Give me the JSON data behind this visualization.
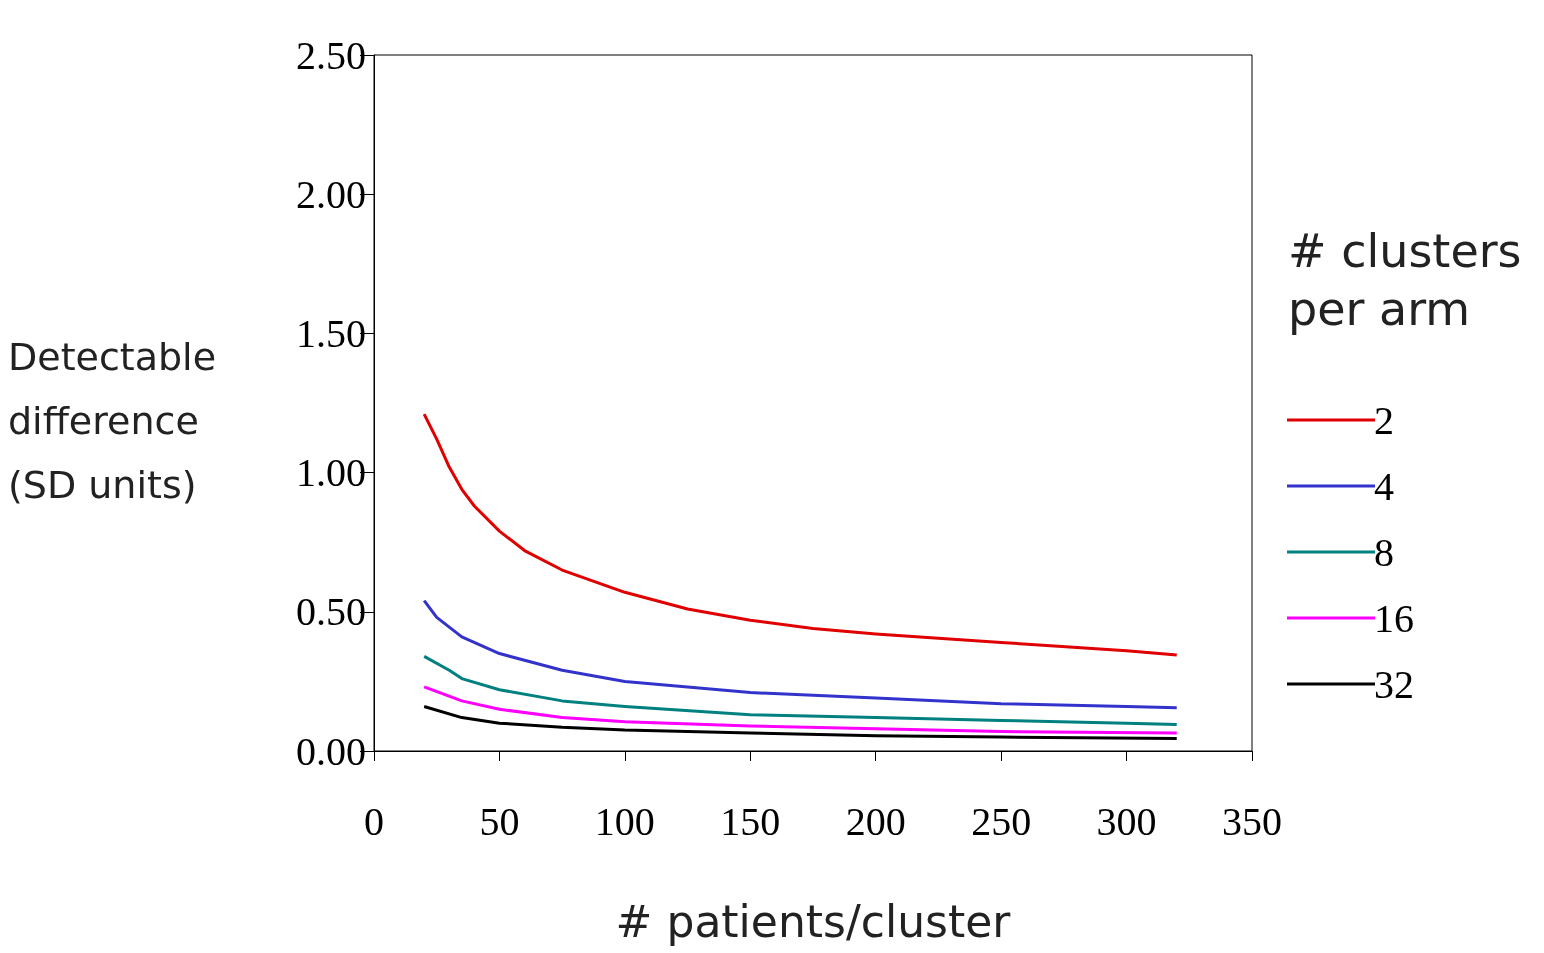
{
  "chart_data": {
    "type": "line",
    "xlabel": "# patients/cluster",
    "ylabel": "Detectable difference (SD units)",
    "legend_title": "# clusters per arm",
    "xlim": [
      0,
      350
    ],
    "xticks": [
      0,
      50,
      100,
      150,
      200,
      250,
      300,
      350
    ],
    "ylim": [
      0,
      2.5
    ],
    "yticks": [
      {
        "value": 0,
        "label": "0.00"
      },
      {
        "value": 0.5,
        "label": "0.50"
      },
      {
        "value": 1,
        "label": "1.00"
      },
      {
        "value": 1.5,
        "label": "1.50"
      },
      {
        "value": 2,
        "label": "2.00"
      },
      {
        "value": 2.5,
        "label": "2.50"
      }
    ],
    "grid": false,
    "legend": "right",
    "marker": "none",
    "line_style": "solid",
    "series": [
      {
        "name": "2",
        "color": "#e00000",
        "x": [
          20,
          25,
          30,
          35,
          40,
          50,
          60,
          75,
          100,
          125,
          150,
          175,
          200,
          250,
          300,
          320
        ],
        "values": [
          1.21,
          1.12,
          1.02,
          0.94,
          0.88,
          0.79,
          0.72,
          0.65,
          0.57,
          0.51,
          0.47,
          0.44,
          0.42,
          0.39,
          0.36,
          0.345
        ]
      },
      {
        "name": "4",
        "color": "#3333cc",
        "x": [
          20,
          25,
          35,
          50,
          75,
          100,
          125,
          150,
          200,
          250,
          300,
          320
        ],
        "values": [
          0.54,
          0.48,
          0.41,
          0.35,
          0.29,
          0.25,
          0.23,
          0.21,
          0.19,
          0.17,
          0.16,
          0.155
        ]
      },
      {
        "name": "8",
        "color": "#008080",
        "x": [
          20,
          30,
          35,
          50,
          75,
          100,
          150,
          200,
          250,
          300,
          320
        ],
        "values": [
          0.34,
          0.29,
          0.26,
          0.22,
          0.18,
          0.16,
          0.13,
          0.12,
          0.11,
          0.1,
          0.095
        ]
      },
      {
        "name": "16",
        "color": "#ff00ff",
        "x": [
          20,
          35,
          50,
          75,
          100,
          150,
          200,
          250,
          320
        ],
        "values": [
          0.23,
          0.18,
          0.15,
          0.12,
          0.105,
          0.09,
          0.08,
          0.07,
          0.065
        ]
      },
      {
        "name": "32",
        "color": "#000000",
        "x": [
          20,
          35,
          50,
          75,
          100,
          150,
          200,
          250,
          320
        ],
        "values": [
          0.16,
          0.12,
          0.1,
          0.085,
          0.075,
          0.065,
          0.055,
          0.05,
          0.045
        ]
      }
    ]
  }
}
